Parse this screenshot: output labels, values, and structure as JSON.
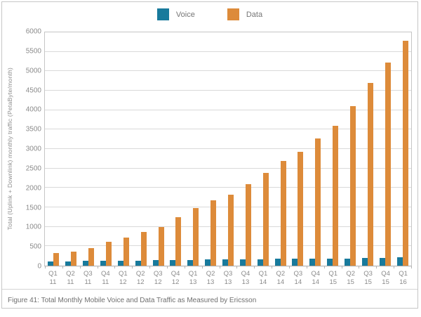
{
  "figure": {
    "caption": "Figure 41: Total Monthly Mobile Voice and Data Traffic as Measured by Ericsson"
  },
  "chart_data": {
    "type": "bar",
    "title": "",
    "xlabel": "",
    "ylabel": "Total (Uplink + Downlink) monthly traffic (PetaByte/month)",
    "ylim": [
      0,
      6000
    ],
    "ytick_step": 500,
    "grid": true,
    "legend_position": "top-center",
    "categories": [
      {
        "q": "Q1",
        "yr": "11"
      },
      {
        "q": "Q2",
        "yr": "11"
      },
      {
        "q": "Q3",
        "yr": "11"
      },
      {
        "q": "Q4",
        "yr": "11"
      },
      {
        "q": "Q1",
        "yr": "12"
      },
      {
        "q": "Q2",
        "yr": "12"
      },
      {
        "q": "Q3",
        "yr": "12"
      },
      {
        "q": "Q4",
        "yr": "12"
      },
      {
        "q": "Q1",
        "yr": "13"
      },
      {
        "q": "Q2",
        "yr": "13"
      },
      {
        "q": "Q3",
        "yr": "13"
      },
      {
        "q": "Q4",
        "yr": "13"
      },
      {
        "q": "Q1",
        "yr": "14"
      },
      {
        "q": "Q2",
        "yr": "14"
      },
      {
        "q": "Q3",
        "yr": "14"
      },
      {
        "q": "Q4",
        "yr": "14"
      },
      {
        "q": "Q1",
        "yr": "15"
      },
      {
        "q": "Q2",
        "yr": "15"
      },
      {
        "q": "Q3",
        "yr": "15"
      },
      {
        "q": "Q4",
        "yr": "15"
      },
      {
        "q": "Q1",
        "yr": "16"
      }
    ],
    "series": [
      {
        "name": "Voice",
        "color": "#187a9c",
        "values": [
          110,
          115,
          120,
          125,
          130,
          135,
          140,
          145,
          150,
          155,
          160,
          165,
          170,
          175,
          175,
          180,
          185,
          190,
          195,
          200,
          215
        ]
      },
      {
        "name": "Data",
        "color": "#dd8b3a",
        "values": [
          330,
          360,
          450,
          620,
          730,
          870,
          1000,
          1240,
          1490,
          1680,
          1820,
          2090,
          2390,
          2700,
          2930,
          3270,
          3590,
          4110,
          4700,
          5230,
          5790
        ]
      }
    ]
  }
}
